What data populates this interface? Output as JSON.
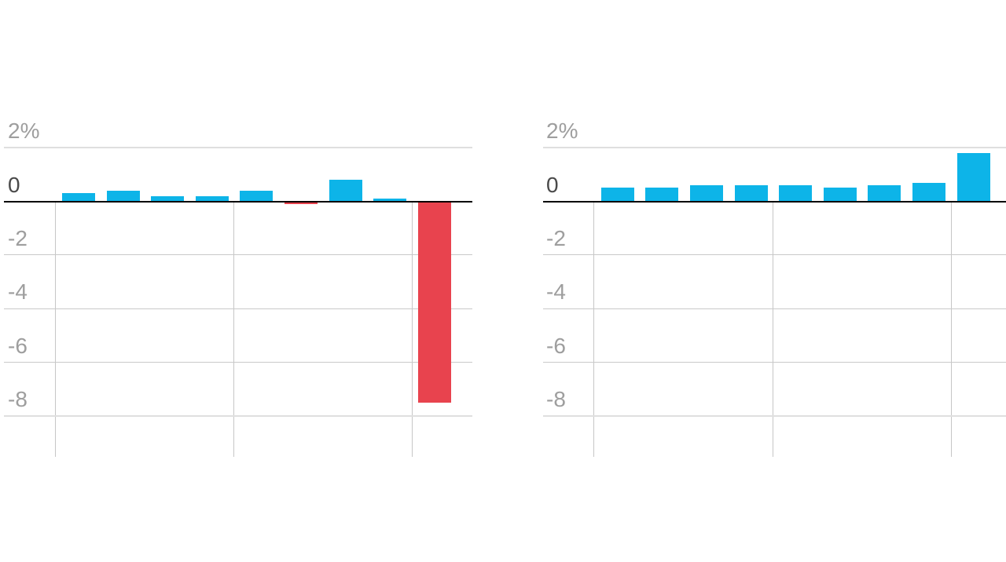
{
  "page": {
    "background": "#ffffff",
    "description_of_visible_content": "two side-by-side bar charts of quarterly percent change, no titles or x labels visible"
  },
  "colors": {
    "positive_bar": "#0db4e8",
    "negative_bar": "#e8434e",
    "baseline": "#000000",
    "gridline_minor": "#c9c9c9",
    "gridline_major": "#dfdfdf",
    "vertical_gridline": "#c6c6c6",
    "tick_label": "#9e9e9e",
    "zero_label": "#4a4a4a",
    "background": "#ffffff"
  },
  "chart_data": [
    {
      "type": "bar",
      "panel": "left",
      "title": "",
      "xlabel": "",
      "ylabel": "",
      "x_tick_labels": [],
      "values": [
        0.3,
        0.4,
        0.2,
        0.2,
        0.4,
        -0.1,
        0.8,
        0.1,
        -7.5
      ],
      "unit": "%",
      "y_ticks": [
        {
          "label": "2%",
          "value": 2
        },
        {
          "label": "0",
          "value": 0
        },
        {
          "label": "-2",
          "value": -2
        },
        {
          "label": "-4",
          "value": -4
        },
        {
          "label": "-6",
          "value": -6
        },
        {
          "label": "-8",
          "value": -8
        }
      ],
      "ylim": [
        -9.5,
        2
      ],
      "grid": true,
      "legend": false,
      "num_vertical_dividers": 3,
      "bars_per_divider_interval": 4
    },
    {
      "type": "bar",
      "panel": "right",
      "title": "",
      "xlabel": "",
      "ylabel": "",
      "x_tick_labels": [],
      "values": [
        0.5,
        0.5,
        0.6,
        0.6,
        0.6,
        0.5,
        0.6,
        0.7,
        1.8
      ],
      "unit": "%",
      "y_ticks": [
        {
          "label": "2%",
          "value": 2
        },
        {
          "label": "0",
          "value": 0
        },
        {
          "label": "-2",
          "value": -2
        },
        {
          "label": "-4",
          "value": -4
        },
        {
          "label": "-6",
          "value": -6
        },
        {
          "label": "-8",
          "value": -8
        }
      ],
      "ylim": [
        -9.5,
        2
      ],
      "grid": true,
      "legend": false,
      "num_vertical_dividers": 3,
      "bars_per_divider_interval": 4
    }
  ]
}
